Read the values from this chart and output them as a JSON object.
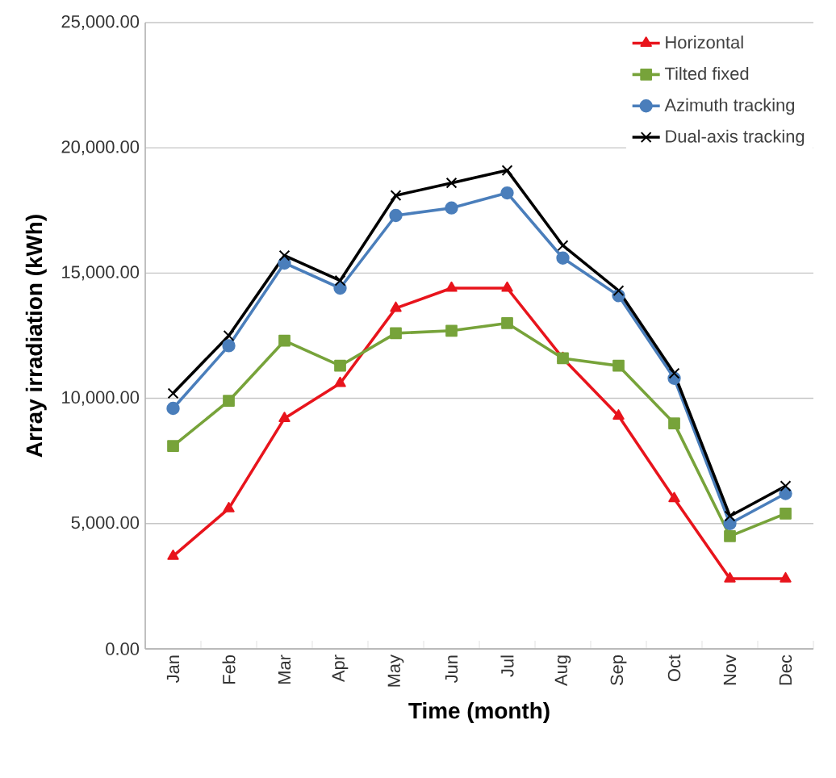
{
  "chart_data": {
    "type": "line",
    "xlabel": "Time (month)",
    "ylabel": "Array irradiation (kWh)",
    "categories": [
      "Jan",
      "Feb",
      "Mar",
      "Apr",
      "May",
      "Jun",
      "Jul",
      "Aug",
      "Sep",
      "Oct",
      "Nov",
      "Dec"
    ],
    "ylim": [
      0,
      25000
    ],
    "yticks": [
      {
        "value": 0,
        "label": "0.00"
      },
      {
        "value": 5000,
        "label": "5,000.00"
      },
      {
        "value": 10000,
        "label": "10,000.00"
      },
      {
        "value": 15000,
        "label": "15,000.00"
      },
      {
        "value": 20000,
        "label": "20,000.00"
      },
      {
        "value": 25000,
        "label": "25,000.00"
      }
    ],
    "grid": "y",
    "legend": "top right",
    "series": [
      {
        "name": "Horizontal",
        "color": "#e8141c",
        "marker": "triangle",
        "values": [
          3700,
          5600,
          9200,
          10600,
          13600,
          14400,
          14400,
          11600,
          9300,
          6000,
          2800,
          2800
        ]
      },
      {
        "name": "Tilted fixed",
        "color": "#77a33a",
        "marker": "square",
        "values": [
          8100,
          9900,
          12300,
          11300,
          12600,
          12700,
          13000,
          11600,
          11300,
          9000,
          4500,
          5400
        ]
      },
      {
        "name": "Azimuth tracking",
        "color": "#4a7ebb",
        "marker": "circle",
        "values": [
          9600,
          12100,
          15400,
          14400,
          17300,
          17600,
          18200,
          15600,
          14100,
          10800,
          5000,
          6200
        ]
      },
      {
        "name": "Dual-axis tracking",
        "color": "#000000",
        "marker": "cross",
        "values": [
          10200,
          12500,
          15700,
          14700,
          18100,
          18600,
          19100,
          16100,
          14300,
          11000,
          5300,
          6500
        ]
      }
    ]
  }
}
